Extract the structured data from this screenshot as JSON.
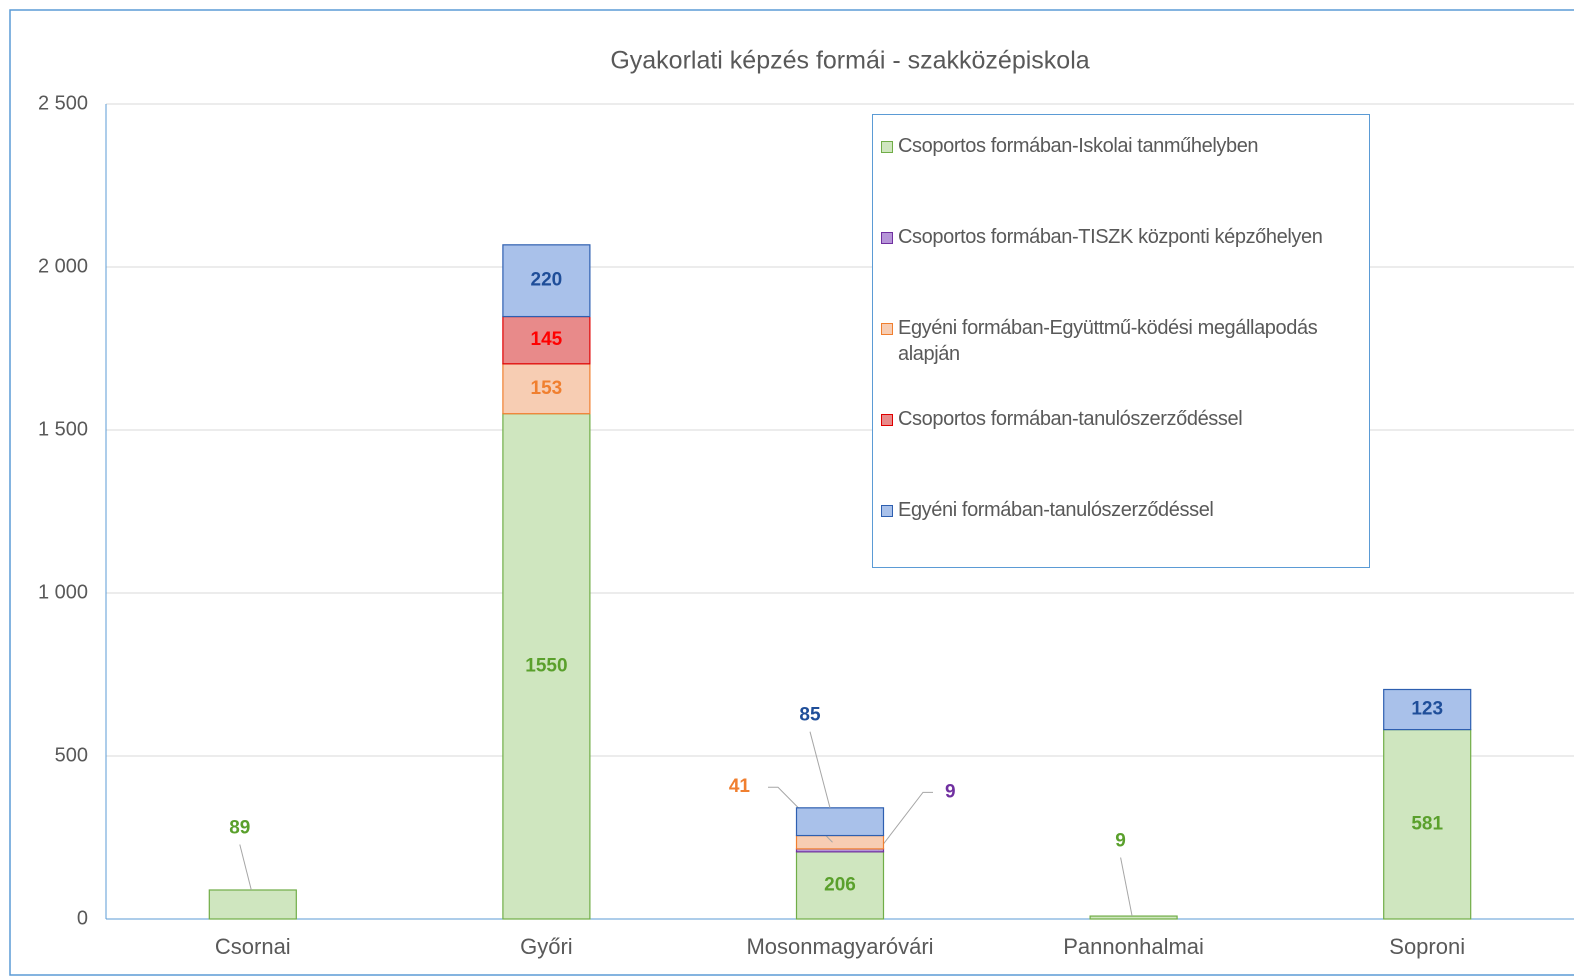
{
  "chart_data": {
    "type": "stacked_bar",
    "title": "Gyakorlati képzés formái - szakközépiskola",
    "categories": [
      "Csornai",
      "Győri",
      "Mosonmagyaróvári",
      "Pannonhalmai",
      "Soproni"
    ],
    "series": [
      {
        "name": "Csoportos formában-Iskolai tanműhelyben",
        "color": "#70ad47",
        "values": [
          89,
          1550,
          206,
          9,
          581
        ]
      },
      {
        "name": "Csoportos formában-TISZK központi képzőhelyen",
        "color": "#7030a0",
        "values": [
          null,
          null,
          9,
          null,
          null
        ]
      },
      {
        "name": "Egyéni formában-Együttmű-ködési megállapodás alapján",
        "color": "#f07f2f",
        "values": [
          null,
          153,
          41,
          null,
          null
        ]
      },
      {
        "name": "Csoportos formában-tanulószerződéssel",
        "color": "#e00000",
        "values": [
          null,
          145,
          null,
          null,
          null
        ]
      },
      {
        "name": "Egyéni formában-tanulószerződéssel",
        "color": "#2e5fb0",
        "values": [
          null,
          220,
          85,
          null,
          123
        ]
      }
    ],
    "ylim": [
      0,
      2500
    ],
    "yticks": [
      0,
      500,
      {
        "value": 1000,
        "label": "1 000"
      },
      {
        "value": 1500,
        "label": "1 500"
      },
      {
        "value": 2000,
        "label": "2 000"
      },
      {
        "value": 2500,
        "label": "2 500"
      }
    ],
    "grid": true,
    "legend": "upper right"
  }
}
